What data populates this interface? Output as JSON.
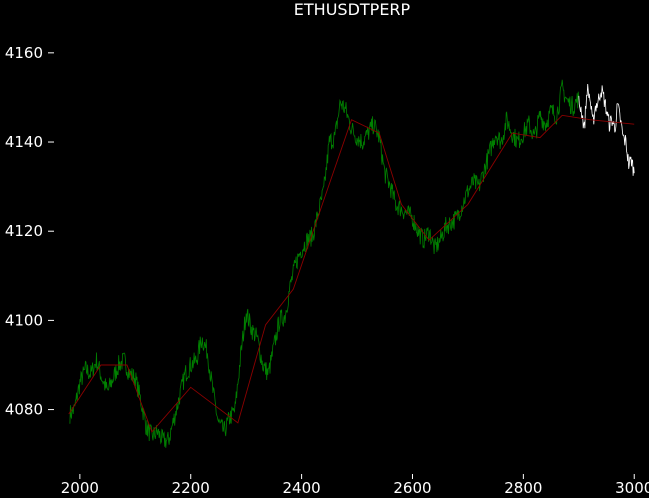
{
  "chart_data": {
    "type": "line",
    "title": "ETHUSDTPERP",
    "xlabel": "",
    "ylabel": "",
    "xlim": [
      1975,
      3005
    ],
    "ylim": [
      4066,
      4164
    ],
    "x_ticks": [
      2000,
      2200,
      2400,
      2600,
      2800,
      3000
    ],
    "y_ticks": [
      4080,
      4100,
      4120,
      4140,
      4160
    ],
    "grid": false,
    "legend": "none",
    "background_color": "#000000",
    "series": [
      {
        "role": "price_history",
        "color": "#008000",
        "anchors": [
          [
            1982,
            4079
          ],
          [
            1990,
            4080
          ],
          [
            2000,
            4086
          ],
          [
            2010,
            4089
          ],
          [
            2020,
            4088
          ],
          [
            2030,
            4091
          ],
          [
            2040,
            4087
          ],
          [
            2050,
            4084
          ],
          [
            2060,
            4087
          ],
          [
            2070,
            4090
          ],
          [
            2080,
            4091
          ],
          [
            2090,
            4088
          ],
          [
            2100,
            4087
          ],
          [
            2110,
            4082
          ],
          [
            2120,
            4076
          ],
          [
            2130,
            4074
          ],
          [
            2140,
            4075
          ],
          [
            2150,
            4073
          ],
          [
            2160,
            4073
          ],
          [
            2170,
            4078
          ],
          [
            2180,
            4083
          ],
          [
            2190,
            4088
          ],
          [
            2200,
            4090
          ],
          [
            2210,
            4091
          ],
          [
            2220,
            4096
          ],
          [
            2230,
            4093
          ],
          [
            2240,
            4084
          ],
          [
            2250,
            4077
          ],
          [
            2260,
            4075
          ],
          [
            2270,
            4078
          ],
          [
            2280,
            4080
          ],
          [
            2290,
            4092
          ],
          [
            2300,
            4102
          ],
          [
            2310,
            4098
          ],
          [
            2320,
            4096
          ],
          [
            2330,
            4090
          ],
          [
            2340,
            4088
          ],
          [
            2350,
            4094
          ],
          [
            2360,
            4100
          ],
          [
            2370,
            4101
          ],
          [
            2380,
            4108
          ],
          [
            2390,
            4113
          ],
          [
            2400,
            4116
          ],
          [
            2410,
            4118
          ],
          [
            2420,
            4119
          ],
          [
            2430,
            4124
          ],
          [
            2440,
            4129
          ],
          [
            2450,
            4140
          ],
          [
            2460,
            4141
          ],
          [
            2470,
            4149
          ],
          [
            2480,
            4147
          ],
          [
            2490,
            4143
          ],
          [
            2500,
            4141
          ],
          [
            2510,
            4140
          ],
          [
            2520,
            4142
          ],
          [
            2530,
            4144
          ],
          [
            2540,
            4141
          ],
          [
            2550,
            4133
          ],
          [
            2560,
            4130
          ],
          [
            2570,
            4126
          ],
          [
            2580,
            4125
          ],
          [
            2590,
            4124
          ],
          [
            2600,
            4123
          ],
          [
            2610,
            4120
          ],
          [
            2620,
            4118
          ],
          [
            2630,
            4120
          ],
          [
            2640,
            4116
          ],
          [
            2650,
            4118
          ],
          [
            2660,
            4121
          ],
          [
            2670,
            4122
          ],
          [
            2680,
            4123
          ],
          [
            2690,
            4126
          ],
          [
            2700,
            4129
          ],
          [
            2710,
            4131
          ],
          [
            2720,
            4130
          ],
          [
            2730,
            4134
          ],
          [
            2740,
            4138
          ],
          [
            2750,
            4142
          ],
          [
            2760,
            4140
          ],
          [
            2770,
            4145
          ],
          [
            2780,
            4142
          ],
          [
            2790,
            4140
          ],
          [
            2800,
            4142
          ],
          [
            2810,
            4144
          ],
          [
            2820,
            4141
          ],
          [
            2830,
            4146
          ],
          [
            2840,
            4144
          ],
          [
            2850,
            4147
          ],
          [
            2860,
            4146
          ],
          [
            2870,
            4152
          ],
          [
            2880,
            4149
          ],
          [
            2890,
            4148
          ],
          [
            2900,
            4150
          ]
        ]
      },
      {
        "role": "recent_price",
        "color": "#ffffff",
        "anchors": [
          [
            2900,
            4149
          ],
          [
            2905,
            4147
          ],
          [
            2910,
            4143
          ],
          [
            2915,
            4152
          ],
          [
            2920,
            4150
          ],
          [
            2925,
            4144
          ],
          [
            2930,
            4148
          ],
          [
            2935,
            4149
          ],
          [
            2940,
            4152
          ],
          [
            2945,
            4150
          ],
          [
            2950,
            4147
          ],
          [
            2955,
            4144
          ],
          [
            2960,
            4145
          ],
          [
            2965,
            4143
          ],
          [
            2970,
            4148
          ],
          [
            2975,
            4145
          ],
          [
            2980,
            4141
          ],
          [
            2985,
            4140
          ],
          [
            2990,
            4135
          ],
          [
            2995,
            4136
          ],
          [
            3000,
            4133
          ]
        ]
      },
      {
        "role": "zigzag",
        "color": "#8b0000",
        "points": [
          [
            1980,
            4079
          ],
          [
            2038,
            4090
          ],
          [
            2085,
            4090
          ],
          [
            2130,
            4075
          ],
          [
            2200,
            4085
          ],
          [
            2285,
            4077
          ],
          [
            2335,
            4099
          ],
          [
            2385,
            4107
          ],
          [
            2440,
            4127
          ],
          [
            2490,
            4145
          ],
          [
            2540,
            4142
          ],
          [
            2580,
            4126
          ],
          [
            2630,
            4118
          ],
          [
            2700,
            4126
          ],
          [
            2780,
            4142
          ],
          [
            2830,
            4141
          ],
          [
            2870,
            4146
          ],
          [
            2920,
            4145
          ],
          [
            3000,
            4144
          ]
        ]
      }
    ]
  }
}
